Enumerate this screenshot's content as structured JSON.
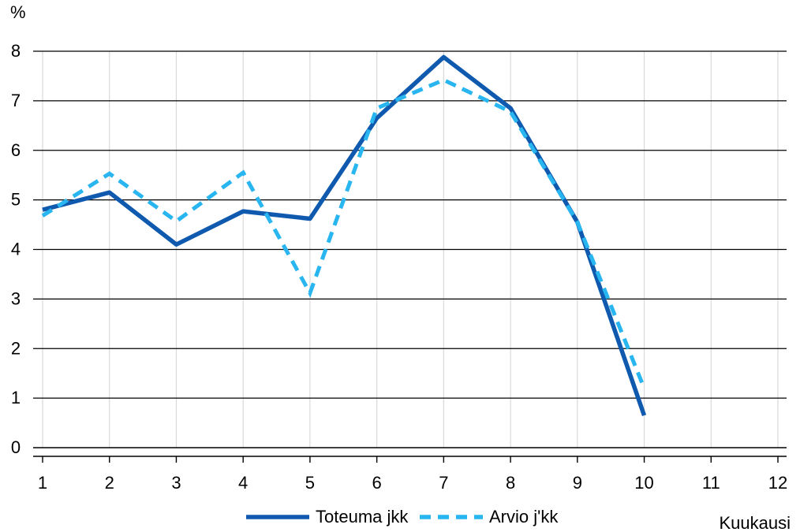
{
  "chart_data": {
    "type": "line",
    "title": "",
    "ylabel": "%",
    "xlabel": "Kuukausi",
    "x": [
      1,
      2,
      3,
      4,
      5,
      6,
      7,
      8,
      9,
      10,
      11,
      12
    ],
    "ylim": [
      0,
      8
    ],
    "yticks": [
      0,
      1,
      2,
      3,
      4,
      5,
      6,
      7,
      8
    ],
    "grid": true,
    "legend_position": "bottom",
    "series": [
      {
        "name": "Toteuma jkk",
        "style": "solid",
        "color": "#0F5AAE",
        "x": [
          1,
          2,
          3,
          4,
          5,
          6,
          7,
          8,
          9,
          10
        ],
        "values": [
          4.8,
          5.15,
          4.1,
          4.77,
          4.62,
          6.65,
          7.88,
          6.85,
          4.55,
          0.65
        ]
      },
      {
        "name": "Arvio j'kk",
        "style": "dashed",
        "color": "#29B6F0",
        "x": [
          1,
          2,
          3,
          4,
          5,
          6,
          7,
          8,
          9,
          10
        ],
        "values": [
          4.68,
          5.53,
          4.57,
          5.55,
          3.12,
          6.85,
          7.42,
          6.78,
          4.55,
          1.2
        ]
      }
    ]
  }
}
